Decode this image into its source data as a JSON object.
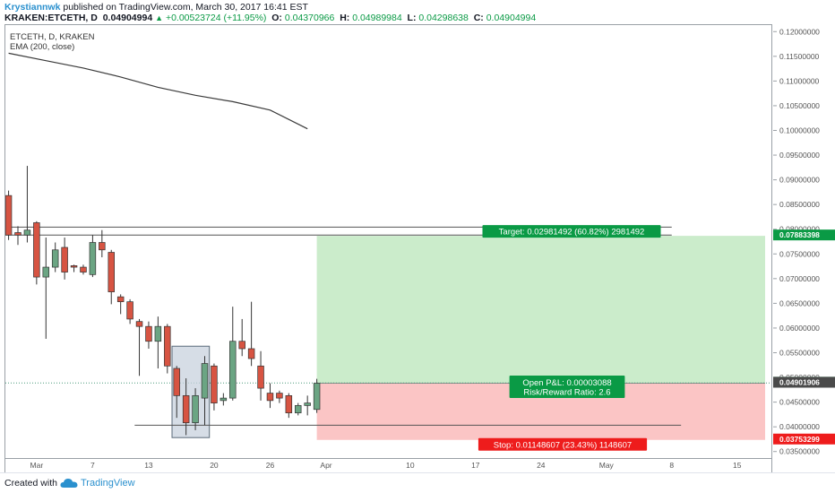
{
  "header": {
    "author": "Krystiannwk",
    "published_text": "published on TradingView.com, March 30, 2017 16:41 EST",
    "symbol": "KRAKEN:ETCETH, D",
    "last_price": "0.04904994",
    "change": "+0.00523724 (+11.95%)",
    "open_label": "O:",
    "open_value": "0.04370966",
    "high_label": "H:",
    "high_value": "0.04989984",
    "low_label": "L:",
    "low_value": "0.04298638",
    "close_label": "C:",
    "close_value": "0.04904994"
  },
  "legend": {
    "symbol_line": "ETCETH, D, KRAKEN",
    "indicator": "EMA (200, close)"
  },
  "footer": {
    "created_with": "Created with",
    "brand": "TradingView"
  },
  "colors": {
    "up": "#6ba583",
    "down": "#d75442",
    "target_label_bg": "#0a9a45",
    "stop_label_bg": "#ee1c1c",
    "profit_zone": "#cbeccb",
    "loss_zone": "#fbc5c5",
    "highlight_box": "#c8d2de",
    "ema": "#3a3a3a"
  },
  "chart_data": {
    "type": "candlestick",
    "y_range": [
      0.0335,
      0.1215
    ],
    "x_range": [
      "2017-02-27",
      "2017-05-18"
    ],
    "y_ticks": [
      0.035,
      0.04,
      0.045,
      0.05,
      0.055,
      0.06,
      0.065,
      0.07,
      0.075,
      0.08,
      0.085,
      0.09,
      0.095,
      0.1,
      0.105,
      0.11,
      0.115,
      0.12
    ],
    "y_tick_labels": [
      "0.03500000",
      "0.04000000",
      "0.04500000",
      "0.05000000",
      "0.05500000",
      "0.06000000",
      "0.06500000",
      "0.07000000",
      "0.07500000",
      "0.08000000",
      "0.08500000",
      "0.09000000",
      "0.09500000",
      "0.10000000",
      "0.10500000",
      "0.11000000",
      "0.11500000",
      "0.12000000"
    ],
    "x_ticks": [
      {
        "label": "Mar",
        "date": "2017-03-01"
      },
      {
        "label": "7",
        "date": "2017-03-07"
      },
      {
        "label": "13",
        "date": "2017-03-13"
      },
      {
        "label": "20",
        "date": "2017-03-20"
      },
      {
        "label": "26",
        "date": "2017-03-26"
      },
      {
        "label": "Apr",
        "date": "2017-04-01"
      },
      {
        "label": "10",
        "date": "2017-04-10"
      },
      {
        "label": "17",
        "date": "2017-04-17"
      },
      {
        "label": "24",
        "date": "2017-04-24"
      },
      {
        "label": "May",
        "date": "2017-05-01"
      },
      {
        "label": "8",
        "date": "2017-05-08"
      },
      {
        "label": "15",
        "date": "2017-05-15"
      }
    ],
    "candles": [
      {
        "date": "2017-02-26",
        "o": 0.087,
        "h": 0.088,
        "l": 0.078,
        "c": 0.079
      },
      {
        "date": "2017-02-27",
        "o": 0.0795,
        "h": 0.0808,
        "l": 0.077,
        "c": 0.079
      },
      {
        "date": "2017-02-28",
        "o": 0.079,
        "h": 0.093,
        "l": 0.0775,
        "c": 0.08
      },
      {
        "date": "2017-03-01",
        "o": 0.0815,
        "h": 0.0818,
        "l": 0.069,
        "c": 0.0705
      },
      {
        "date": "2017-03-02",
        "o": 0.0705,
        "h": 0.0785,
        "l": 0.058,
        "c": 0.0725
      },
      {
        "date": "2017-03-03",
        "o": 0.0725,
        "h": 0.0775,
        "l": 0.0715,
        "c": 0.076
      },
      {
        "date": "2017-03-04",
        "o": 0.0765,
        "h": 0.0785,
        "l": 0.07,
        "c": 0.0715
      },
      {
        "date": "2017-03-05",
        "o": 0.0728,
        "h": 0.073,
        "l": 0.0715,
        "c": 0.0725
      },
      {
        "date": "2017-03-06",
        "o": 0.0725,
        "h": 0.073,
        "l": 0.071,
        "c": 0.0715
      },
      {
        "date": "2017-03-07",
        "o": 0.071,
        "h": 0.079,
        "l": 0.0705,
        "c": 0.0775
      },
      {
        "date": "2017-03-08",
        "o": 0.0775,
        "h": 0.08,
        "l": 0.0745,
        "c": 0.076
      },
      {
        "date": "2017-03-09",
        "o": 0.0755,
        "h": 0.076,
        "l": 0.065,
        "c": 0.0675
      },
      {
        "date": "2017-03-10",
        "o": 0.0665,
        "h": 0.067,
        "l": 0.063,
        "c": 0.0655
      },
      {
        "date": "2017-03-11",
        "o": 0.0655,
        "h": 0.066,
        "l": 0.061,
        "c": 0.062
      },
      {
        "date": "2017-03-12",
        "o": 0.0615,
        "h": 0.062,
        "l": 0.0505,
        "c": 0.0605
      },
      {
        "date": "2017-03-13",
        "o": 0.0605,
        "h": 0.0615,
        "l": 0.056,
        "c": 0.0575
      },
      {
        "date": "2017-03-14",
        "o": 0.0575,
        "h": 0.0625,
        "l": 0.052,
        "c": 0.0605
      },
      {
        "date": "2017-03-15",
        "o": 0.0605,
        "h": 0.061,
        "l": 0.051,
        "c": 0.0525
      },
      {
        "date": "2017-03-16",
        "o": 0.052,
        "h": 0.0525,
        "l": 0.042,
        "c": 0.0465
      },
      {
        "date": "2017-03-17",
        "o": 0.0465,
        "h": 0.05,
        "l": 0.0385,
        "c": 0.041
      },
      {
        "date": "2017-03-18",
        "o": 0.041,
        "h": 0.048,
        "l": 0.0395,
        "c": 0.0465
      },
      {
        "date": "2017-03-19",
        "o": 0.046,
        "h": 0.0545,
        "l": 0.0405,
        "c": 0.053
      },
      {
        "date": "2017-03-20",
        "o": 0.0525,
        "h": 0.053,
        "l": 0.0435,
        "c": 0.045
      },
      {
        "date": "2017-03-21",
        "o": 0.0455,
        "h": 0.047,
        "l": 0.0445,
        "c": 0.046
      },
      {
        "date": "2017-03-22",
        "o": 0.046,
        "h": 0.0645,
        "l": 0.0455,
        "c": 0.0575
      },
      {
        "date": "2017-03-23",
        "o": 0.0575,
        "h": 0.062,
        "l": 0.0545,
        "c": 0.056
      },
      {
        "date": "2017-03-24",
        "o": 0.056,
        "h": 0.0655,
        "l": 0.0525,
        "c": 0.054
      },
      {
        "date": "2017-03-25",
        "o": 0.0525,
        "h": 0.0555,
        "l": 0.0455,
        "c": 0.048
      },
      {
        "date": "2017-03-26",
        "o": 0.047,
        "h": 0.049,
        "l": 0.044,
        "c": 0.0455
      },
      {
        "date": "2017-03-27",
        "o": 0.047,
        "h": 0.0475,
        "l": 0.045,
        "c": 0.046
      },
      {
        "date": "2017-03-28",
        "o": 0.0465,
        "h": 0.047,
        "l": 0.042,
        "c": 0.043
      },
      {
        "date": "2017-03-29",
        "o": 0.043,
        "h": 0.045,
        "l": 0.0425,
        "c": 0.0445
      },
      {
        "date": "2017-03-30",
        "o": 0.0445,
        "h": 0.0465,
        "l": 0.0425,
        "c": 0.045
      },
      {
        "date": "2017-03-31",
        "o": 0.0437,
        "h": 0.0499,
        "l": 0.043,
        "c": 0.049
      }
    ],
    "ema": {
      "name": "EMA (200, close)",
      "points": [
        {
          "date": "2017-02-26",
          "v": 0.1158
        },
        {
          "date": "2017-03-02",
          "v": 0.1143
        },
        {
          "date": "2017-03-06",
          "v": 0.1128
        },
        {
          "date": "2017-03-10",
          "v": 0.111
        },
        {
          "date": "2017-03-14",
          "v": 0.1089
        },
        {
          "date": "2017-03-18",
          "v": 0.1073
        },
        {
          "date": "2017-03-22",
          "v": 0.106
        },
        {
          "date": "2017-03-26",
          "v": 0.1043
        },
        {
          "date": "2017-03-30",
          "v": 0.1005
        }
      ]
    },
    "horizontal_lines": [
      {
        "value": 0.0806,
        "from": "2017-02-26",
        "to": "2017-05-08"
      },
      {
        "value": 0.079,
        "from": "2017-02-26",
        "to": "2017-05-08"
      },
      {
        "value": 0.0405,
        "from": "2017-03-12",
        "to": "2017-05-09"
      }
    ],
    "dotted_price_line": 0.04904994,
    "highlight_box": {
      "from": "2017-03-16",
      "to": "2017-03-19",
      "low": 0.038,
      "high": 0.0565
    },
    "position": {
      "from": "2017-03-31",
      "to": "2017-05-18",
      "entry": 0.04901906,
      "target": 0.07883398,
      "stop": 0.03753299,
      "target_label": "Target: 0.02981492 (60.82%) 2981492",
      "stop_label": "Stop: 0.01148607 (23.43%) 1148607",
      "pnl_label": "Open P&L: 0.00003088",
      "rr_label": "Risk/Reward Ratio: 2.6"
    },
    "price_labels": [
      {
        "value": 0.07883398,
        "text": "0.07883398",
        "bg": "#0a9a45",
        "fg": "#ffffff"
      },
      {
        "value": 0.04904994,
        "text": "0.04904994",
        "bg": "#6ba583",
        "fg": "#ffffff"
      },
      {
        "value": 0.04901906,
        "text": "0.04901906",
        "bg": "#4a4a4a",
        "fg": "#ffffff"
      },
      {
        "value": 0.03753299,
        "text": "0.03753299",
        "bg": "#ee1c1c",
        "fg": "#ffffff"
      }
    ]
  }
}
